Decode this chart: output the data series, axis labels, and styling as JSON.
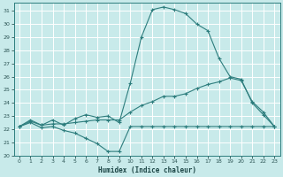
{
  "xlabel": "Humidex (Indice chaleur)",
  "bg_color": "#c8eaea",
  "grid_color": "#b8d8d8",
  "line_color": "#2d7d7d",
  "xlim": [
    -0.5,
    23.5
  ],
  "ylim": [
    20,
    31.6
  ],
  "xticks": [
    0,
    1,
    2,
    3,
    4,
    5,
    6,
    7,
    8,
    9,
    10,
    11,
    12,
    13,
    14,
    15,
    16,
    17,
    18,
    19,
    20,
    21,
    22,
    23
  ],
  "yticks": [
    20,
    21,
    22,
    23,
    24,
    25,
    26,
    27,
    28,
    29,
    30,
    31
  ],
  "line1_x": [
    0,
    1,
    2,
    3,
    4,
    5,
    6,
    7,
    8,
    9,
    10,
    11,
    12,
    13,
    14,
    15,
    16,
    17,
    18,
    19,
    20,
    21,
    22,
    23
  ],
  "line1_y": [
    22.2,
    22.5,
    22.1,
    22.2,
    21.9,
    21.7,
    21.3,
    20.9,
    20.3,
    20.3,
    22.2,
    22.2,
    22.2,
    22.2,
    22.2,
    22.2,
    22.2,
    22.2,
    22.2,
    22.2,
    22.2,
    22.2,
    22.2,
    22.2
  ],
  "line2_x": [
    0,
    1,
    2,
    3,
    4,
    5,
    6,
    7,
    8,
    9,
    10,
    11,
    12,
    13,
    14,
    15,
    16,
    17,
    18,
    19,
    20,
    21,
    22,
    23
  ],
  "line2_y": [
    22.2,
    22.6,
    22.3,
    22.4,
    22.4,
    22.5,
    22.6,
    22.7,
    22.7,
    22.7,
    23.3,
    23.8,
    24.1,
    24.5,
    24.5,
    24.7,
    25.1,
    25.4,
    25.6,
    25.9,
    25.7,
    24.1,
    23.3,
    22.2
  ],
  "line3_x": [
    0,
    1,
    2,
    3,
    4,
    5,
    6,
    7,
    8,
    9,
    10,
    11,
    12,
    13,
    14,
    15,
    16,
    17,
    18,
    19,
    20,
    21,
    22,
    23
  ],
  "line3_y": [
    22.2,
    22.7,
    22.3,
    22.7,
    22.3,
    22.8,
    23.1,
    22.9,
    23.0,
    22.5,
    25.5,
    29.0,
    31.1,
    31.3,
    31.1,
    30.8,
    30.0,
    29.5,
    27.4,
    26.0,
    25.8,
    24.0,
    23.1,
    22.2
  ]
}
